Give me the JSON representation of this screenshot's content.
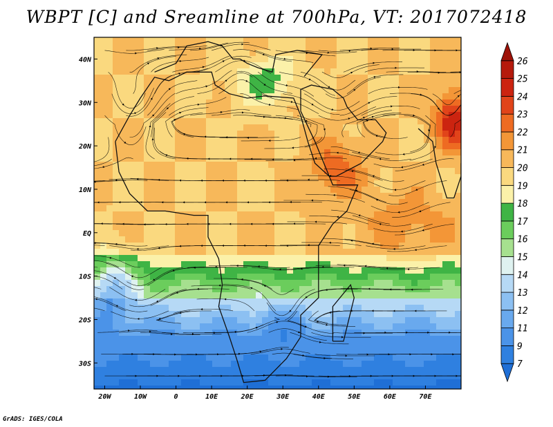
{
  "title": "WBPT [C] and Sreamline at 700hPa, VT: 2017072418",
  "footer": "GrADS: IGES/COLA",
  "map": {
    "lon_range": [
      -23,
      80
    ],
    "lat_range": [
      -36,
      45
    ],
    "y_ticks": [
      {
        "lat": 40,
        "label": "40N"
      },
      {
        "lat": 30,
        "label": "30N"
      },
      {
        "lat": 20,
        "label": "20N"
      },
      {
        "lat": 10,
        "label": "10N"
      },
      {
        "lat": 0,
        "label": "EQ"
      },
      {
        "lat": -10,
        "label": "10S"
      },
      {
        "lat": -20,
        "label": "20S"
      },
      {
        "lat": -30,
        "label": "30S"
      }
    ],
    "x_ticks": [
      {
        "lon": -20,
        "label": "20W"
      },
      {
        "lon": -10,
        "label": "10W"
      },
      {
        "lon": 0,
        "label": "0"
      },
      {
        "lon": 10,
        "label": "10E"
      },
      {
        "lon": 20,
        "label": "20E"
      },
      {
        "lon": 30,
        "label": "30E"
      },
      {
        "lon": 40,
        "label": "40E"
      },
      {
        "lon": 50,
        "label": "50E"
      },
      {
        "lon": 60,
        "label": "60E"
      },
      {
        "lon": 70,
        "label": "70E"
      }
    ]
  },
  "colorbar": {
    "levels": [
      "7",
      "9",
      "11",
      "12",
      "13",
      "14",
      "15",
      "16",
      "17",
      "18",
      "19",
      "20",
      "21",
      "22",
      "23",
      "24",
      "25",
      "26"
    ],
    "colors": [
      "#1f6fd6",
      "#2f80e0",
      "#4b93e8",
      "#69a9ee",
      "#8cc0f2",
      "#b6d9f5",
      "#dff2f0",
      "#a6e08f",
      "#6bcd5c",
      "#3fb445",
      "#fbf1a9",
      "#fad97f",
      "#f7b85a",
      "#f39637",
      "#ee6b22",
      "#e1441a",
      "#cc2410",
      "#b51a0c",
      "#9e1208"
    ]
  }
}
